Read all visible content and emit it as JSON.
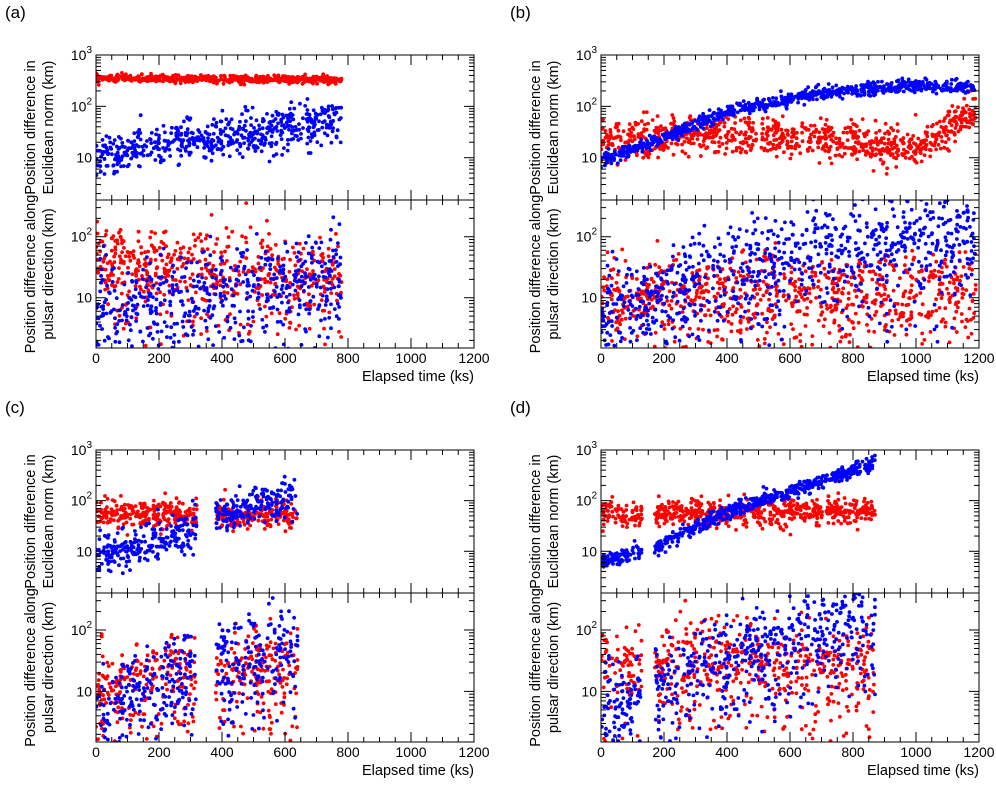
{
  "figure_colors": {
    "series_a": "#ff0000",
    "series_b": "#0000ff"
  },
  "shared_axes": {
    "x_ticks": [
      "0",
      "200",
      "400",
      "600",
      "800",
      "1000",
      "1200"
    ],
    "xlabel": "Elapsed time (ks)",
    "ylabel_top": [
      "Position difference in",
      "Euclidean norm (km)"
    ],
    "ylabel_bottom": [
      "Position difference along",
      "pulsar direction (km)"
    ],
    "y_ticks_top": [
      {
        "base": "10",
        "exp": "3"
      },
      {
        "base": "10",
        "exp": "2"
      },
      {
        "base": "10",
        "exp": ""
      }
    ],
    "y_ticks_bottom": [
      {
        "base": "10",
        "exp": "2"
      },
      {
        "base": "10",
        "exp": ""
      }
    ]
  },
  "chart_data": [
    {
      "panel": "(a)",
      "type": "scatter",
      "x_range": [
        0,
        1200
      ],
      "xlabel": "Elapsed time (ks)",
      "subplots": [
        {
          "ylabel": "Position difference in Euclidean norm (km)",
          "yscale": "log",
          "ylim": [
            1.5,
            1000
          ],
          "series": [
            {
              "name": "red",
              "color": "#ff0000",
              "x_end": 780,
              "trend": [
                [
                  0,
                  350
                ],
                [
                  780,
                  330
                ]
              ],
              "spread": 0.06
            },
            {
              "name": "blue",
              "color": "#0000ff",
              "x_end": 780,
              "trend": [
                [
                  0,
                  11
                ],
                [
                  300,
                  20
                ],
                [
                  500,
                  30
                ],
                [
                  780,
                  55
                ]
              ],
              "spread": 0.35
            }
          ]
        },
        {
          "ylabel": "Position difference along pulsar direction (km)",
          "yscale": "log",
          "ylim": [
            1.5,
            400
          ],
          "series": [
            {
              "name": "red",
              "color": "#ff0000",
              "x_end": 780,
              "trend": [
                [
                  0,
                  45
                ],
                [
                  780,
                  25
                ]
              ],
              "spread": 0.5
            },
            {
              "name": "blue",
              "color": "#0000ff",
              "x_end": 780,
              "trend": [
                [
                  0,
                  7
                ],
                [
                  780,
                  30
                ]
              ],
              "spread": 0.55
            }
          ]
        }
      ]
    },
    {
      "panel": "(b)",
      "type": "scatter",
      "x_range": [
        0,
        1200
      ],
      "xlabel": "Elapsed time (ks)",
      "subplots": [
        {
          "ylabel": "Position difference in Euclidean norm (km)",
          "yscale": "log",
          "ylim": [
            1.5,
            1000
          ],
          "series": [
            {
              "name": "red",
              "color": "#ff0000",
              "x_end": 1190,
              "trend": [
                [
                  0,
                  20
                ],
                [
                  400,
                  30
                ],
                [
                  800,
                  22
                ],
                [
                  1000,
                  14
                ],
                [
                  1190,
                  90
                ]
              ],
              "spread": 0.3
            },
            {
              "name": "blue",
              "color": "#0000ff",
              "x_end": 1190,
              "trend": [
                [
                  0,
                  9
                ],
                [
                  200,
                  25
                ],
                [
                  400,
                  80
                ],
                [
                  700,
                  180
                ],
                [
                  1000,
                  250
                ],
                [
                  1190,
                  230
                ]
              ],
              "spread": 0.1
            }
          ]
        },
        {
          "ylabel": "Position difference along pulsar direction (km)",
          "yscale": "log",
          "ylim": [
            1.5,
            400
          ],
          "series": [
            {
              "name": "red",
              "color": "#ff0000",
              "x_end": 1190,
              "trend": [
                [
                  0,
                  12
                ],
                [
                  1190,
                  14
                ]
              ],
              "spread": 0.5
            },
            {
              "name": "blue",
              "color": "#0000ff",
              "x_end": 1190,
              "trend": [
                [
                  0,
                  5
                ],
                [
                  400,
                  35
                ],
                [
                  800,
                  90
                ],
                [
                  1190,
                  160
                ]
              ],
              "spread": 0.55
            }
          ]
        }
      ]
    },
    {
      "panel": "(c)",
      "type": "scatter",
      "x_range": [
        0,
        1200
      ],
      "xlabel": "Elapsed time (ks)",
      "subplots": [
        {
          "ylabel": "Position difference in Euclidean norm (km)",
          "yscale": "log",
          "ylim": [
            1.5,
            1000
          ],
          "series": [
            {
              "name": "red",
              "color": "#ff0000",
              "x_end": 640,
              "gap": [
                320,
                380
              ],
              "trend": [
                [
                  0,
                  55
                ],
                [
                  640,
                  50
                ]
              ],
              "spread": 0.22
            },
            {
              "name": "blue",
              "color": "#0000ff",
              "x_end": 640,
              "gap": [
                320,
                380
              ],
              "trend": [
                [
                  0,
                  8
                ],
                [
                  300,
                  25
                ],
                [
                  380,
                  50
                ],
                [
                  640,
                  130
                ]
              ],
              "spread": 0.3
            }
          ]
        },
        {
          "ylabel": "Position difference along pulsar direction (km)",
          "yscale": "log",
          "ylim": [
            1.5,
            400
          ],
          "series": [
            {
              "name": "red",
              "color": "#ff0000",
              "x_end": 640,
              "gap": [
                320,
                380
              ],
              "trend": [
                [
                  0,
                  15
                ],
                [
                  640,
                  28
                ]
              ],
              "spread": 0.5
            },
            {
              "name": "blue",
              "color": "#0000ff",
              "x_end": 640,
              "gap": [
                320,
                380
              ],
              "trend": [
                [
                  0,
                  6
                ],
                [
                  380,
                  30
                ],
                [
                  640,
                  70
                ]
              ],
              "spread": 0.55
            }
          ]
        }
      ]
    },
    {
      "panel": "(d)",
      "type": "scatter",
      "x_range": [
        0,
        1200
      ],
      "xlabel": "Elapsed time (ks)",
      "subplots": [
        {
          "ylabel": "Position difference in Euclidean norm (km)",
          "yscale": "log",
          "ylim": [
            1.5,
            1000
          ],
          "series": [
            {
              "name": "red",
              "color": "#ff0000",
              "x_end": 870,
              "gap": [
                130,
                170
              ],
              "trend": [
                [
                  0,
                  55
                ],
                [
                  870,
                  60
                ]
              ],
              "spread": 0.22
            },
            {
              "name": "blue",
              "color": "#0000ff",
              "x_end": 870,
              "gap": [
                130,
                170
              ],
              "trend": [
                [
                  0,
                  6
                ],
                [
                  170,
                  12
                ],
                [
                  400,
                  60
                ],
                [
                  870,
                  550
                ]
              ],
              "spread": 0.12
            }
          ]
        },
        {
          "ylabel": "Position difference along pulsar direction (km)",
          "yscale": "log",
          "ylim": [
            1.5,
            400
          ],
          "series": [
            {
              "name": "red",
              "color": "#ff0000",
              "x_end": 870,
              "gap": [
                130,
                170
              ],
              "trend": [
                [
                  0,
                  30
                ],
                [
                  870,
                  32
                ]
              ],
              "spread": 0.5
            },
            {
              "name": "blue",
              "color": "#0000ff",
              "x_end": 870,
              "gap": [
                130,
                170
              ],
              "trend": [
                [
                  0,
                  5
                ],
                [
                  400,
                  40
                ],
                [
                  870,
                  200
                ]
              ],
              "spread": 0.55
            }
          ]
        }
      ]
    }
  ]
}
